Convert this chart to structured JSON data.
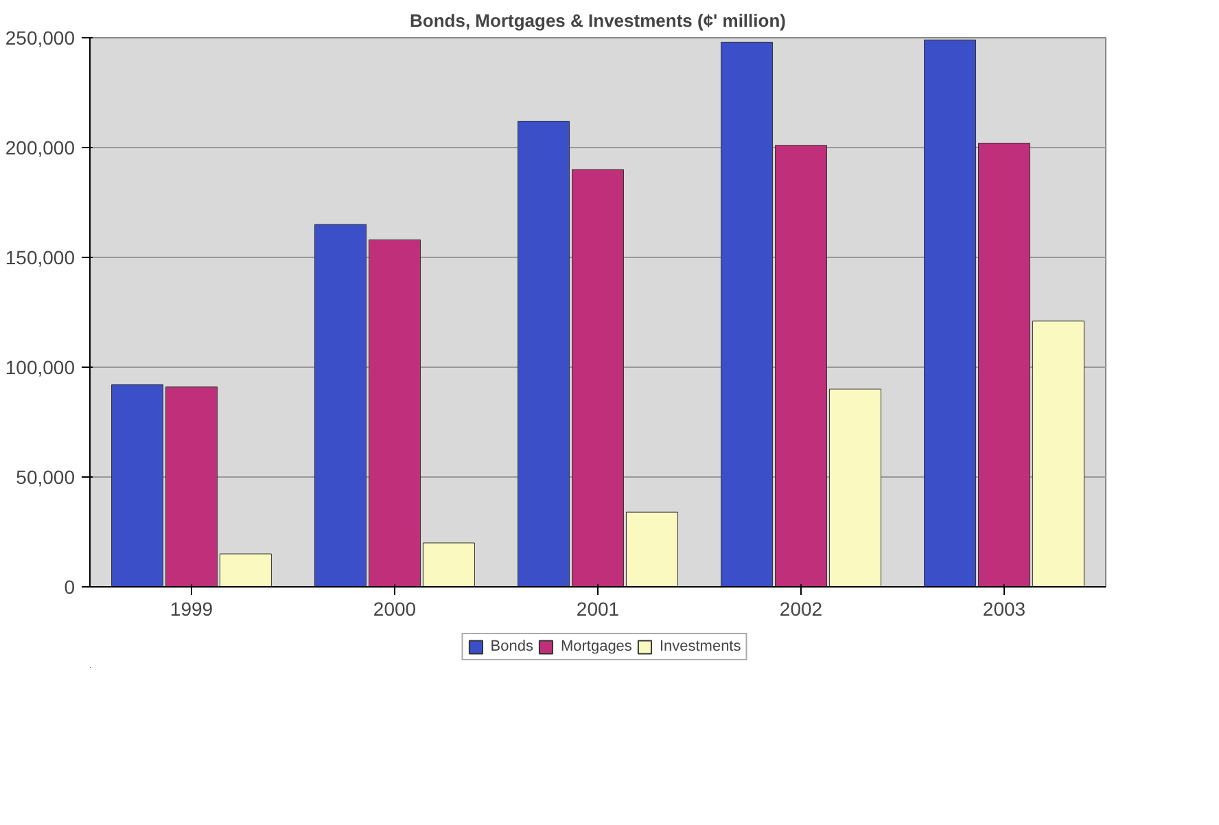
{
  "chart_data": {
    "type": "bar",
    "title": "Bonds, Mortgages & Investments (¢' million)",
    "categories": [
      "1999",
      "2000",
      "2001",
      "2002",
      "2003"
    ],
    "series": [
      {
        "name": "Bonds",
        "color": "#3a4fc8",
        "values": [
          92000,
          165000,
          212000,
          248000,
          249000
        ]
      },
      {
        "name": "Mortgages",
        "color": "#c0307a",
        "values": [
          91000,
          158000,
          190000,
          201000,
          202000
        ]
      },
      {
        "name": "Investments",
        "color": "#fafac0",
        "values": [
          15000,
          20000,
          34000,
          90000,
          121000
        ]
      }
    ],
    "ylim": [
      0,
      250000
    ],
    "yticks": [
      {
        "value": 0,
        "label": "0"
      },
      {
        "value": 50000,
        "label": "50,000"
      },
      {
        "value": 100000,
        "label": "100,000"
      },
      {
        "value": 150000,
        "label": "150,000"
      },
      {
        "value": 200000,
        "label": "200,000"
      },
      {
        "value": 250000,
        "label": "250,000"
      }
    ],
    "grid": "y",
    "legend": "bottom"
  }
}
